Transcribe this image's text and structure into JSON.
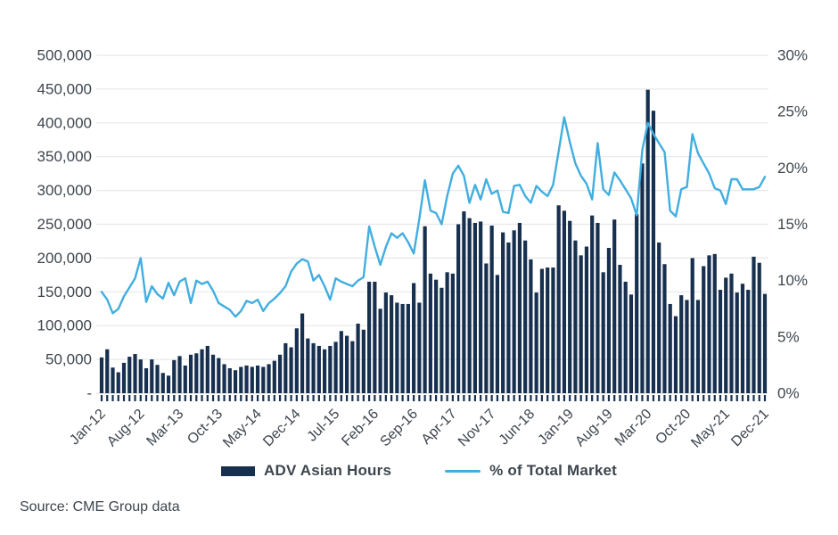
{
  "chart_data": {
    "type": "combo",
    "title": "",
    "categories": [
      "Jan-12",
      "Feb-12",
      "Mar-12",
      "Apr-12",
      "May-12",
      "Jun-12",
      "Jul-12",
      "Aug-12",
      "Sep-12",
      "Oct-12",
      "Nov-12",
      "Dec-12",
      "Jan-13",
      "Feb-13",
      "Mar-13",
      "Apr-13",
      "May-13",
      "Jun-13",
      "Jul-13",
      "Aug-13",
      "Sep-13",
      "Oct-13",
      "Nov-13",
      "Dec-13",
      "Jan-14",
      "Feb-14",
      "Mar-14",
      "Apr-14",
      "May-14",
      "Jun-14",
      "Jul-14",
      "Aug-14",
      "Sep-14",
      "Oct-14",
      "Nov-14",
      "Dec-14",
      "Jan-15",
      "Feb-15",
      "Mar-15",
      "Apr-15",
      "May-15",
      "Jun-15",
      "Jul-15",
      "Aug-15",
      "Sep-15",
      "Oct-15",
      "Nov-15",
      "Dec-15",
      "Jan-16",
      "Feb-16",
      "Mar-16",
      "Apr-16",
      "May-16",
      "Jun-16",
      "Jul-16",
      "Aug-16",
      "Sep-16",
      "Oct-16",
      "Nov-16",
      "Dec-16",
      "Jan-17",
      "Feb-17",
      "Mar-17",
      "Apr-17",
      "May-17",
      "Jun-17",
      "Jul-17",
      "Aug-17",
      "Sep-17",
      "Oct-17",
      "Nov-17",
      "Dec-17",
      "Jan-18",
      "Feb-18",
      "Mar-18",
      "Apr-18",
      "May-18",
      "Jun-18",
      "Jul-18",
      "Aug-18",
      "Sep-18",
      "Oct-18",
      "Nov-18",
      "Dec-18",
      "Jan-19",
      "Feb-19",
      "Mar-19",
      "Apr-19",
      "May-19",
      "Jun-19",
      "Jul-19",
      "Aug-19",
      "Sep-19",
      "Oct-19",
      "Nov-19",
      "Dec-19",
      "Jan-20",
      "Feb-20",
      "Mar-20",
      "Apr-20",
      "May-20",
      "Jun-20",
      "Jul-20",
      "Aug-20",
      "Sep-20",
      "Oct-20",
      "Nov-20",
      "Dec-20",
      "Jan-21",
      "Feb-21",
      "Mar-21",
      "Apr-21",
      "May-21",
      "Jun-21",
      "Jul-21",
      "Aug-21",
      "Sep-21",
      "Oct-21",
      "Nov-21",
      "Dec-21"
    ],
    "series": [
      {
        "name": "ADV Asian Hours",
        "type": "bar",
        "axis": "left",
        "color": "#17304f",
        "values": [
          53000,
          65000,
          38000,
          31000,
          45000,
          54000,
          58000,
          50000,
          37000,
          50000,
          42000,
          30000,
          26000,
          49000,
          55000,
          41000,
          57000,
          59000,
          65000,
          70000,
          57000,
          52000,
          43000,
          37000,
          34000,
          39000,
          41000,
          39000,
          41000,
          39000,
          43000,
          48000,
          57000,
          74000,
          68000,
          96000,
          118000,
          81000,
          74000,
          70000,
          65000,
          70000,
          76000,
          92000,
          85000,
          77000,
          103000,
          94000,
          165000,
          165000,
          125000,
          149000,
          145000,
          134000,
          132000,
          132000,
          163000,
          134000,
          247000,
          177000,
          168000,
          156000,
          179000,
          177000,
          250000,
          269000,
          259000,
          252000,
          254000,
          192000,
          248000,
          175000,
          238000,
          223000,
          241000,
          252000,
          226000,
          198000,
          149000,
          184000,
          186000,
          186000,
          278000,
          270000,
          255000,
          226000,
          204000,
          217000,
          263000,
          252000,
          179000,
          215000,
          257000,
          190000,
          165000,
          146000,
          265000,
          340000,
          449000,
          418000,
          223000,
          191000,
          132000,
          114000,
          145000,
          138000,
          200000,
          138000,
          188000,
          204000,
          206000,
          153000,
          171000,
          177000,
          149000,
          162000,
          153000,
          202000,
          193000,
          147000
        ]
      },
      {
        "name": "% of Total Market",
        "type": "line",
        "axis": "right",
        "color": "#41aee0",
        "values": [
          9.0,
          8.3,
          7.1,
          7.5,
          8.6,
          9.4,
          10.2,
          12.0,
          8.1,
          9.5,
          8.8,
          8.4,
          9.8,
          8.7,
          9.9,
          10.2,
          8.0,
          10.0,
          9.7,
          9.9,
          9.1,
          8.0,
          7.7,
          7.4,
          6.8,
          7.3,
          8.2,
          8.0,
          8.3,
          7.3,
          8.0,
          8.4,
          8.9,
          9.5,
          10.8,
          11.5,
          11.9,
          11.7,
          10.0,
          10.5,
          9.5,
          8.3,
          10.2,
          9.9,
          9.7,
          9.5,
          10.0,
          10.3,
          14.8,
          13.0,
          11.4,
          13.0,
          14.2,
          13.8,
          14.2,
          13.4,
          12.4,
          15.5,
          18.9,
          16.2,
          16.0,
          15.0,
          17.5,
          19.5,
          20.2,
          19.3,
          16.9,
          18.5,
          17.2,
          19.0,
          17.7,
          18.0,
          16.1,
          16.0,
          18.4,
          18.5,
          17.5,
          16.9,
          18.4,
          17.9,
          17.5,
          18.5,
          21.5,
          24.5,
          22.3,
          20.4,
          19.3,
          18.6,
          17.2,
          22.2,
          18.1,
          17.6,
          19.6,
          18.9,
          18.1,
          17.3,
          15.8,
          21.6,
          24.0,
          23.0,
          22.2,
          21.4,
          16.2,
          15.7,
          18.1,
          18.3,
          23.0,
          21.3,
          20.4,
          19.5,
          18.2,
          18.0,
          16.8,
          19.0,
          19.0,
          18.1,
          18.1,
          18.1,
          18.3,
          19.2
        ]
      }
    ],
    "y_left": {
      "min": 0,
      "max": 500000,
      "tick_step": 50000,
      "tick_labels": [
        "-",
        "50,000",
        "100,000",
        "150,000",
        "200,000",
        "250,000",
        "300,000",
        "350,000",
        "400,000",
        "450,000",
        "500,000"
      ]
    },
    "y_right": {
      "min": 0,
      "max": 30,
      "tick_step": 5,
      "tick_labels": [
        "0%",
        "5%",
        "10%",
        "15%",
        "20%",
        "25%",
        "30%"
      ]
    },
    "x_ticks": [
      "Jan-12",
      "Aug-12",
      "Mar-13",
      "Oct-13",
      "May-14",
      "Dec-14",
      "Jul-15",
      "Feb-16",
      "Sep-16",
      "Apr-17",
      "Nov-17",
      "Jun-18",
      "Jan-19",
      "Aug-19",
      "Mar-20",
      "Oct-20",
      "May-21",
      "Dec-21"
    ],
    "grid": true,
    "legend_position": "bottom"
  },
  "legend": {
    "bar_label": "ADV Asian Hours",
    "line_label": "% of Total Market"
  },
  "source": "Source: CME Group data",
  "colors": {
    "bar": "#17304f",
    "line": "#41aee0",
    "text": "#3d454e",
    "grid": "#e7e8ea",
    "background": "#ffffff"
  }
}
